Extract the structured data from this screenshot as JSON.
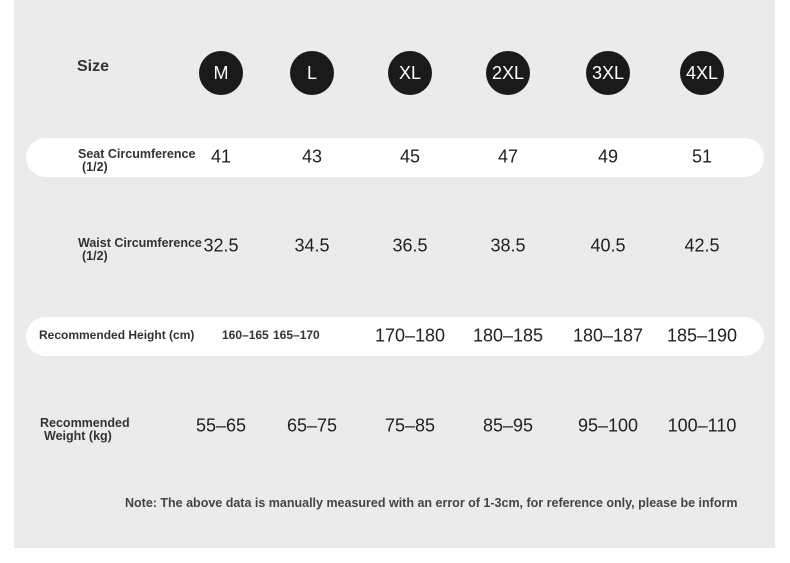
{
  "header": {
    "label": "Size",
    "sizes": [
      "M",
      "L",
      "XL",
      "2XL",
      "3XL",
      "4XL"
    ]
  },
  "rows": [
    {
      "label": "Seat Circumference",
      "sublabel": "(1/2)",
      "values": [
        "41",
        "43",
        "45",
        "47",
        "49",
        "51"
      ]
    },
    {
      "label": "Waist Circumference",
      "sublabel": "(1/2)",
      "values": [
        "32.5",
        "34.5",
        "36.5",
        "38.5",
        "40.5",
        "42.5"
      ]
    },
    {
      "label": "Recommended Height (cm)",
      "values": [
        "160–165",
        "165–170",
        "170–180",
        "180–185",
        "180–187",
        "185–190"
      ]
    },
    {
      "label": "Recommended",
      "sublabel": "Weight (kg)",
      "values": [
        "55–65",
        "65–75",
        "75–85",
        "85–95",
        "95–100",
        "100–110"
      ]
    }
  ],
  "note": "Note: The above data is manually measured with an error of 1-3cm, for reference only, please be inform"
}
